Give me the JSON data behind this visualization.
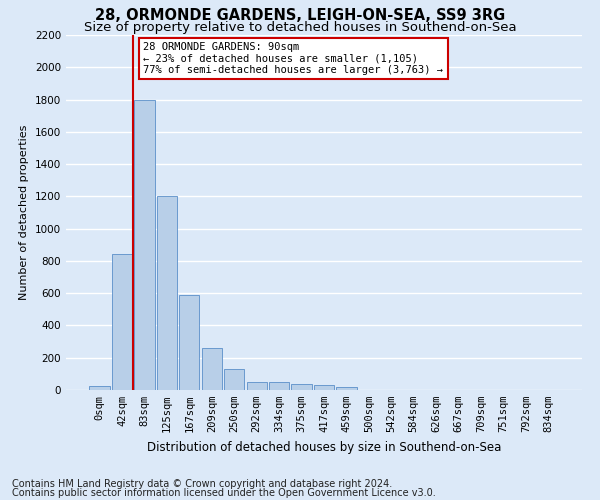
{
  "title1": "28, ORMONDE GARDENS, LEIGH-ON-SEA, SS9 3RG",
  "title2": "Size of property relative to detached houses in Southend-on-Sea",
  "xlabel": "Distribution of detached houses by size in Southend-on-Sea",
  "ylabel": "Number of detached properties",
  "bar_labels": [
    "0sqm",
    "42sqm",
    "83sqm",
    "125sqm",
    "167sqm",
    "209sqm",
    "250sqm",
    "292sqm",
    "334sqm",
    "375sqm",
    "417sqm",
    "459sqm",
    "500sqm",
    "542sqm",
    "584sqm",
    "626sqm",
    "667sqm",
    "709sqm",
    "751sqm",
    "792sqm",
    "834sqm"
  ],
  "bar_values": [
    25,
    845,
    1800,
    1200,
    590,
    260,
    130,
    50,
    47,
    35,
    28,
    18,
    0,
    0,
    0,
    0,
    0,
    0,
    0,
    0,
    0
  ],
  "bar_color": "#b8cfe8",
  "bar_edge_color": "#5b8fc9",
  "ylim": [
    0,
    2200
  ],
  "yticks": [
    0,
    200,
    400,
    600,
    800,
    1000,
    1200,
    1400,
    1600,
    1800,
    2000,
    2200
  ],
  "annotation_title": "28 ORMONDE GARDENS: 90sqm",
  "annotation_line1": "← 23% of detached houses are smaller (1,105)",
  "annotation_line2": "77% of semi-detached houses are larger (3,763) →",
  "annotation_box_color": "#ffffff",
  "annotation_edge_color": "#cc0000",
  "vline_color": "#cc0000",
  "footnote1": "Contains HM Land Registry data © Crown copyright and database right 2024.",
  "footnote2": "Contains public sector information licensed under the Open Government Licence v3.0.",
  "bg_color": "#dce9f8",
  "plot_bg_color": "#dce9f8",
  "grid_color": "#ffffff",
  "title1_fontsize": 10.5,
  "title2_fontsize": 9.5,
  "xlabel_fontsize": 8.5,
  "ylabel_fontsize": 8,
  "tick_fontsize": 7.5,
  "annotation_fontsize": 7.5,
  "footnote_fontsize": 7
}
